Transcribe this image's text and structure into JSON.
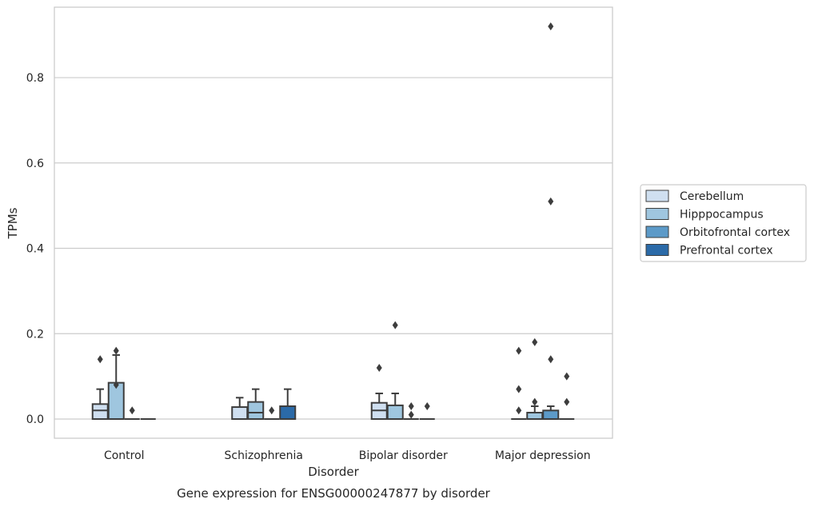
{
  "caption": "Gene expression for ENSG00000247877 by disorder",
  "chart_data": {
    "type": "box",
    "xlabel": "Disorder",
    "ylabel": "TPMs",
    "ylim": [
      -0.045,
      0.965
    ],
    "yticks": [
      0.0,
      0.2,
      0.4,
      0.6,
      0.8
    ],
    "ytick_labels": [
      "0.0",
      "0.2",
      "0.4",
      "0.6",
      "0.8"
    ],
    "grid": "horizontal",
    "legend_position": "right",
    "categories": [
      "Control",
      "Schizophrenia",
      "Bipolar disorder",
      "Major depression"
    ],
    "series": [
      {
        "name": "Cerebellum",
        "color": "#cfdff0",
        "boxes": [
          {
            "q1": 0.0,
            "median": 0.02,
            "q3": 0.035,
            "whisker_low": 0.0,
            "whisker_high": 0.07,
            "outliers": [
              0.14
            ]
          },
          {
            "q1": 0.0,
            "median": 0.0,
            "q3": 0.028,
            "whisker_low": 0.0,
            "whisker_high": 0.05,
            "outliers": []
          },
          {
            "q1": 0.0,
            "median": 0.02,
            "q3": 0.038,
            "whisker_low": 0.0,
            "whisker_high": 0.06,
            "outliers": [
              0.12
            ]
          },
          {
            "q1": 0.0,
            "median": 0.0,
            "q3": 0.0,
            "whisker_low": 0.0,
            "whisker_high": 0.0,
            "outliers": [
              0.16,
              0.07,
              0.02
            ]
          }
        ]
      },
      {
        "name": "Hipppocampus",
        "color": "#9fc6df",
        "boxes": [
          {
            "q1": 0.0,
            "median": 0.0,
            "q3": 0.085,
            "whisker_low": 0.0,
            "whisker_high": 0.15,
            "outliers": [
              0.16,
              0.08
            ]
          },
          {
            "q1": 0.0,
            "median": 0.015,
            "q3": 0.04,
            "whisker_low": 0.0,
            "whisker_high": 0.07,
            "outliers": []
          },
          {
            "q1": 0.0,
            "median": 0.0,
            "q3": 0.032,
            "whisker_low": 0.0,
            "whisker_high": 0.06,
            "outliers": [
              0.22
            ]
          },
          {
            "q1": 0.0,
            "median": 0.0,
            "q3": 0.015,
            "whisker_low": 0.0,
            "whisker_high": 0.03,
            "outliers": [
              0.18,
              0.04
            ]
          }
        ]
      },
      {
        "name": "Orbitofrontal cortex",
        "color": "#5c9ac8",
        "boxes": [
          {
            "q1": 0.0,
            "median": 0.0,
            "q3": 0.0,
            "whisker_low": 0.0,
            "whisker_high": 0.0,
            "outliers": [
              0.02
            ]
          },
          {
            "q1": 0.0,
            "median": 0.0,
            "q3": 0.0,
            "whisker_low": 0.0,
            "whisker_high": 0.0,
            "outliers": [
              0.02
            ]
          },
          {
            "q1": 0.0,
            "median": 0.0,
            "q3": 0.0,
            "whisker_low": 0.0,
            "whisker_high": 0.0,
            "outliers": [
              0.03,
              0.01
            ]
          },
          {
            "q1": 0.0,
            "median": 0.0,
            "q3": 0.02,
            "whisker_low": 0.0,
            "whisker_high": 0.03,
            "outliers": [
              0.92,
              0.51,
              0.14
            ]
          }
        ]
      },
      {
        "name": "Prefrontal cortex",
        "color": "#2b6aa8",
        "boxes": [
          {
            "q1": 0.0,
            "median": 0.0,
            "q3": 0.0,
            "whisker_low": 0.0,
            "whisker_high": 0.0,
            "outliers": []
          },
          {
            "q1": 0.0,
            "median": 0.0,
            "q3": 0.03,
            "whisker_low": 0.0,
            "whisker_high": 0.07,
            "outliers": []
          },
          {
            "q1": 0.0,
            "median": 0.0,
            "q3": 0.0,
            "whisker_low": 0.0,
            "whisker_high": 0.0,
            "outliers": [
              0.03
            ]
          },
          {
            "q1": 0.0,
            "median": 0.0,
            "q3": 0.0,
            "whisker_low": 0.0,
            "whisker_high": 0.0,
            "outliers": [
              0.1,
              0.04
            ]
          }
        ]
      }
    ]
  }
}
